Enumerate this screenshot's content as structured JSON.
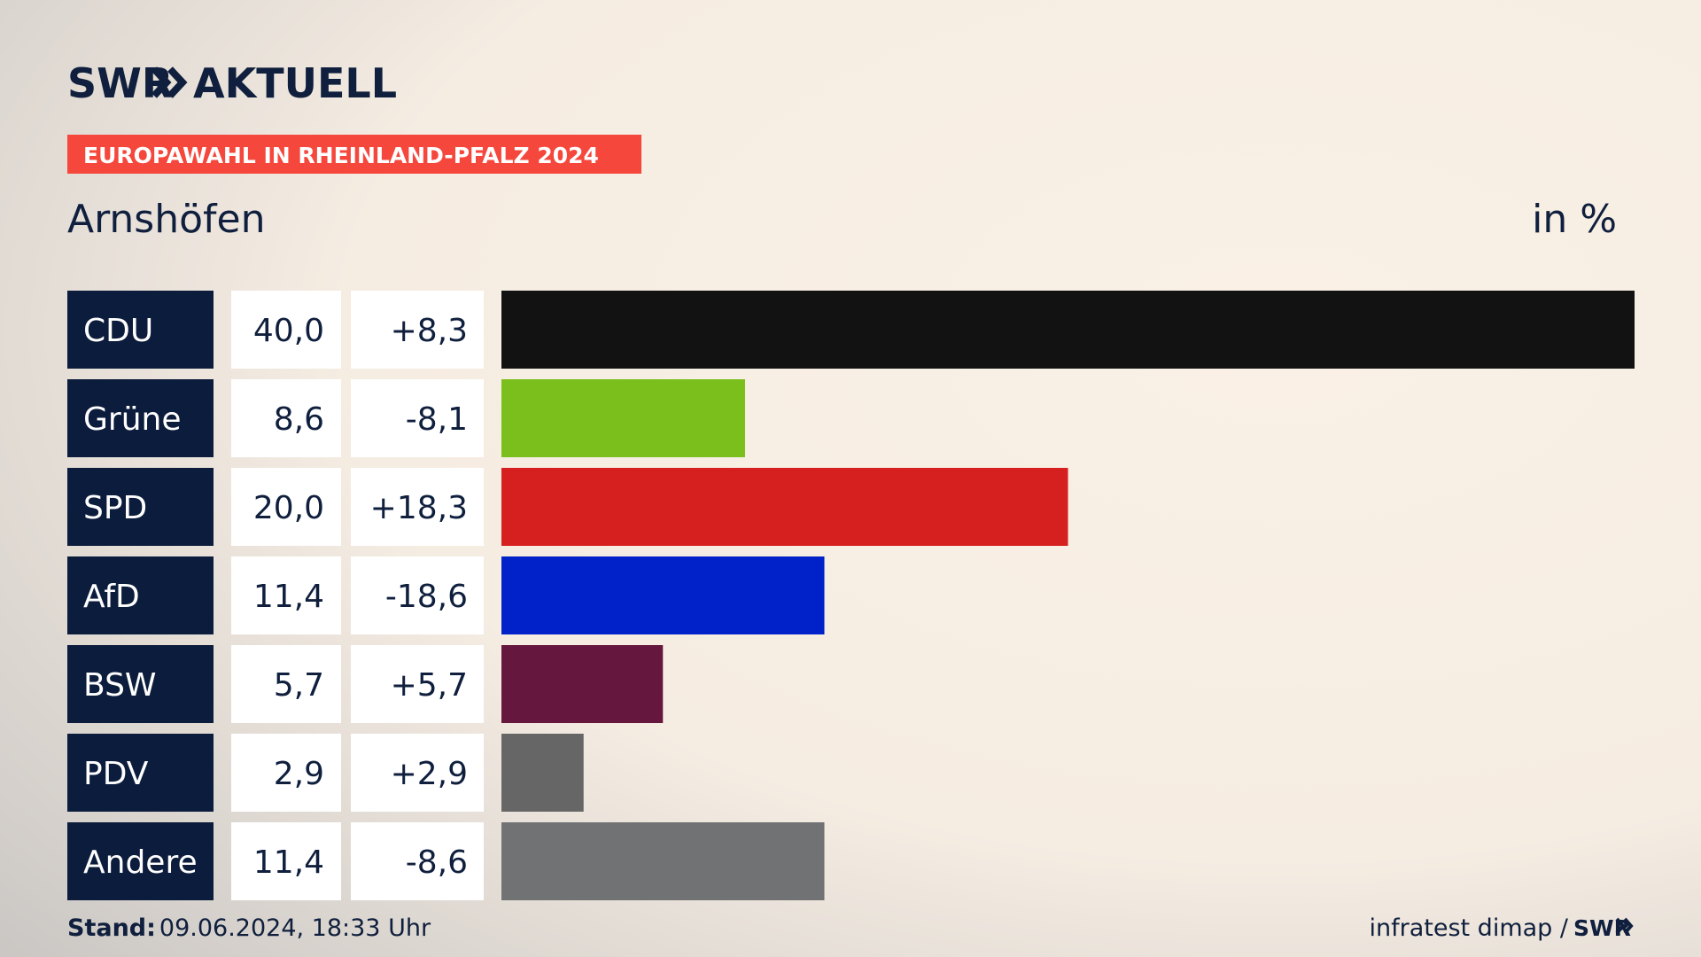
{
  "header": {
    "brand": "SWR",
    "brand2": "AKTUELL",
    "banner": "EUROPAWAHL IN RHEINLAND-PFALZ 2024"
  },
  "chart_data": {
    "type": "bar",
    "title": "Arnshöfen",
    "unit": "in %",
    "categories": [
      "CDU",
      "Grüne",
      "SPD",
      "AfD",
      "BSW",
      "PDV",
      "Andere"
    ],
    "values": [
      40.0,
      8.6,
      20.0,
      11.4,
      5.7,
      2.9,
      11.4
    ],
    "value_labels": [
      "40,0",
      "8,6",
      "20,0",
      "11,4",
      "5,7",
      "2,9",
      "11,4"
    ],
    "changes": [
      "+8,3",
      "-8,1",
      "+18,3",
      "-18,6",
      "+5,7",
      "+2,9",
      "-8,6"
    ],
    "colors": [
      "#121212",
      "#7abf1b",
      "#d61f1f",
      "#0022c8",
      "#66173d",
      "#666666",
      "#717274"
    ],
    "xlim": [
      0,
      40
    ]
  },
  "footer": {
    "stand_label": "Stand:",
    "stand": "09.06.2024, 18:33 Uhr",
    "source": "infratest dimap /",
    "source_brand": "SWR"
  }
}
